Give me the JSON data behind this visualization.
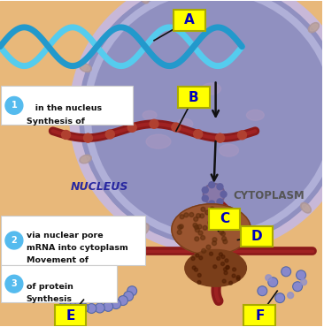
{
  "bg_color": "#e8b87a",
  "nucleus_fill": "#9090c0",
  "nucleus_membrane": "#b8a8cc",
  "nucleus_inner": "#a0a0cc",
  "cytoplasm_label": "CYTOPLASM",
  "nucleus_label": "NUCLEUS",
  "label_A": "A",
  "label_B": "B",
  "label_C": "C",
  "label_D": "D",
  "label_E": "E",
  "label_F": "F",
  "text1_num": "1",
  "text1_line1": "Synthesis of",
  "text1_line2": "   in the nucleus",
  "text2_num": "2",
  "text2_line1": "Movement of",
  "text2_line2": "mRNA into cytoplasm",
  "text2_line3": "via nuclear pore",
  "text3_num": "3",
  "text3_line1": "Synthesis",
  "text3_line2": "of protein",
  "dna_light": "#55ccee",
  "dna_dark": "#2299cc",
  "mrna_color": "#8b1a1a",
  "ribosome_dark": "#7a3e1a",
  "ribosome_mid": "#9a5530",
  "protein_color": "#8888cc",
  "label_bg": "#ffff00",
  "label_fg": "#0000bb",
  "ann_color": "#111111",
  "box_bg": "#ffffff",
  "circle_color": "#55bbee",
  "nuc_dot_color": "#a090b8",
  "pore_color": "#8878a8"
}
